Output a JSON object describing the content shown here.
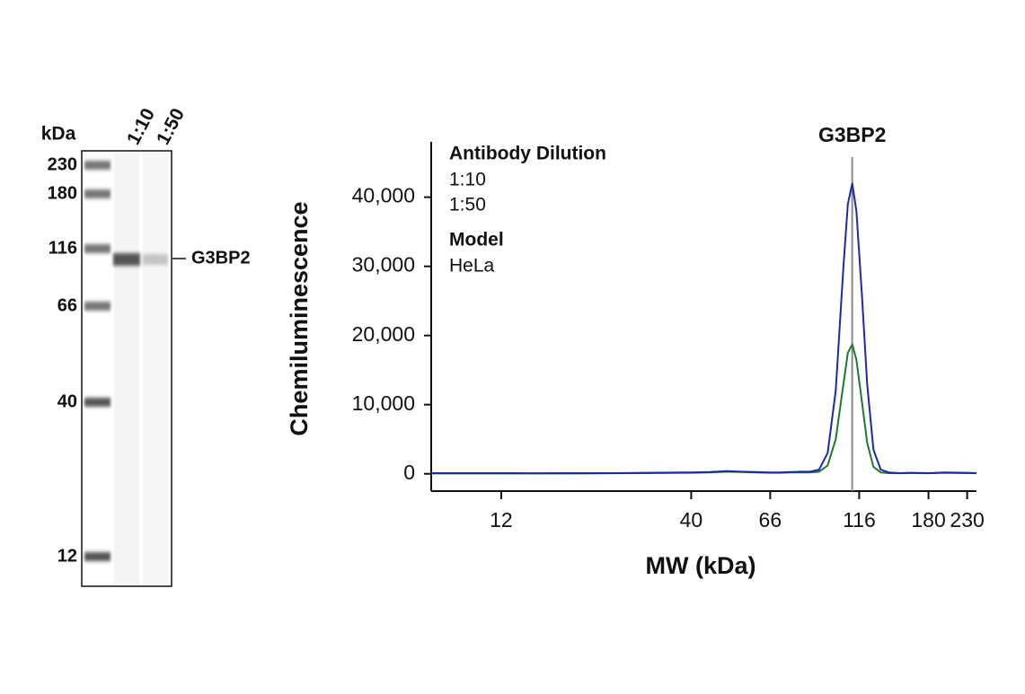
{
  "gel": {
    "unit": "kDa",
    "lanes": [
      "1:10",
      "1:50"
    ],
    "markers": [
      "230",
      "180",
      "116",
      "66",
      "40",
      "12"
    ],
    "band_label": "G3BP2"
  },
  "chart_data": {
    "type": "line",
    "x_label": "MW (kDa)",
    "y_label": "Chemiluminescence",
    "legend_title": "Antibody Dilution",
    "model_title": "Model",
    "model": "HeLa",
    "annotation": {
      "label": "G3BP2",
      "x": 111
    },
    "log_x": true,
    "grid": false,
    "xlim": [
      7.7,
      244
    ],
    "xticks": [
      12,
      40,
      66,
      116,
      180,
      230
    ],
    "ylim": [
      -2500,
      48000
    ],
    "yticks": [
      0,
      {
        "value": 10000,
        "label": "10,000"
      },
      {
        "value": 20000,
        "label": "20,000"
      },
      {
        "value": 30000,
        "label": "30,000"
      },
      {
        "value": 40000,
        "label": "40,000"
      }
    ],
    "x": [
      7.7,
      10,
      12,
      15,
      20,
      25,
      30,
      40,
      45,
      50,
      55,
      60,
      66,
      70,
      75,
      80,
      85,
      90,
      95,
      100,
      105,
      108,
      111,
      114,
      118,
      122,
      127,
      133,
      140,
      150,
      160,
      180,
      200,
      230,
      244
    ],
    "series": [
      {
        "name": "1:10",
        "color": "#1c2aa8",
        "values": [
          100,
          100,
          100,
          80,
          100,
          100,
          150,
          200,
          250,
          400,
          300,
          250,
          200,
          200,
          250,
          300,
          300,
          600,
          3000,
          12000,
          30000,
          39000,
          42000,
          38000,
          26000,
          13000,
          3500,
          600,
          200,
          100,
          150,
          100,
          200,
          150,
          100
        ]
      },
      {
        "name": "1:50",
        "color": "#1e7a2c",
        "values": [
          50,
          50,
          50,
          50,
          50,
          80,
          100,
          150,
          200,
          300,
          250,
          200,
          150,
          150,
          200,
          200,
          200,
          300,
          1200,
          5000,
          13000,
          17500,
          18700,
          16500,
          10500,
          4500,
          1000,
          200,
          100,
          80,
          100,
          80,
          150,
          100,
          80
        ]
      }
    ]
  }
}
